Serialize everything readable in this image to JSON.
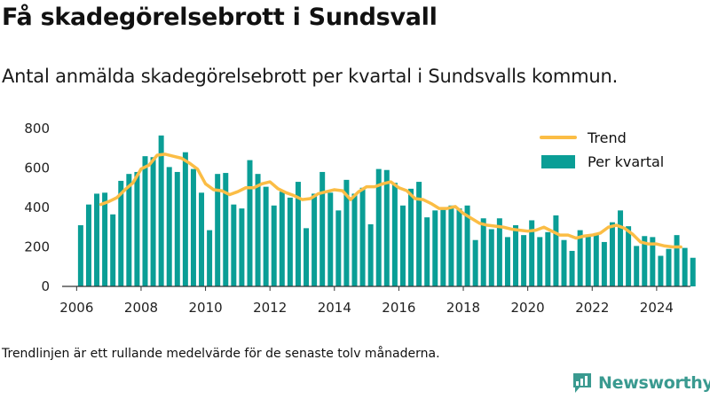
{
  "title": "Få skadegörelsebrott i Sundsvall",
  "subtitle": "Antal anmälda skadegörelsebrott per kvartal i Sundsvalls kommun.",
  "footnote": "Trendlinjen är ett rullande medelvärde för de senaste tolv månaderna.",
  "brand": {
    "name": "Newsworthy",
    "logo_icon": "newsworthy-chart-bubble-icon",
    "color": "#3a9a90"
  },
  "colors": {
    "bar": "#0a9e96",
    "trend": "#fbbd45",
    "axis": "#333333"
  },
  "chart_data": {
    "type": "bar",
    "xlabel": "",
    "ylabel": "",
    "ylim": [
      0,
      800
    ],
    "xlim": [
      2005.55,
      2025.05
    ],
    "y_ticks": [
      0,
      200,
      400,
      600,
      800
    ],
    "x_ticks": [
      2006,
      2008,
      2010,
      2012,
      2014,
      2016,
      2018,
      2020,
      2022,
      2024
    ],
    "grid": false,
    "legend": {
      "position": "top-right",
      "entries": [
        {
          "label": "Trend",
          "kind": "line"
        },
        {
          "label": "Per kvartal",
          "kind": "bar"
        }
      ]
    },
    "quarters_start": "2006-Q1",
    "series": [
      {
        "name": "Per kvartal",
        "type": "bar",
        "values": [
          310,
          415,
          470,
          475,
          365,
          535,
          570,
          580,
          660,
          655,
          765,
          605,
          580,
          680,
          595,
          475,
          285,
          570,
          575,
          415,
          395,
          640,
          570,
          505,
          410,
          480,
          450,
          530,
          295,
          470,
          580,
          475,
          385,
          540,
          470,
          500,
          315,
          595,
          590,
          525,
          410,
          495,
          530,
          350,
          385,
          395,
          410,
          395,
          410,
          235,
          345,
          290,
          345,
          250,
          310,
          260,
          335,
          250,
          275,
          360,
          235,
          180,
          285,
          260,
          270,
          225,
          325,
          385,
          305,
          205,
          255,
          250,
          155,
          190,
          260,
          195,
          145
        ]
      },
      {
        "name": "Trend",
        "type": "line",
        "x": [
          2006.75,
          2007.0,
          2007.25,
          2007.5,
          2007.75,
          2008.0,
          2008.25,
          2008.5,
          2008.75,
          2009.0,
          2009.25,
          2009.5,
          2009.75,
          2010.0,
          2010.25,
          2010.5,
          2010.75,
          2011.0,
          2011.25,
          2011.5,
          2011.75,
          2012.0,
          2012.25,
          2012.5,
          2012.75,
          2013.0,
          2013.25,
          2013.5,
          2013.75,
          2014.0,
          2014.25,
          2014.5,
          2014.75,
          2015.0,
          2015.25,
          2015.5,
          2015.75,
          2016.0,
          2016.25,
          2016.5,
          2016.75,
          2017.0,
          2017.25,
          2017.5,
          2017.75,
          2018.0,
          2018.25,
          2018.5,
          2018.75,
          2019.0,
          2019.25,
          2019.5,
          2019.75,
          2020.0,
          2020.25,
          2020.5,
          2020.75,
          2021.0,
          2021.25,
          2021.5,
          2021.75,
          2022.0,
          2022.25,
          2022.5,
          2022.75,
          2023.0,
          2023.25,
          2023.5,
          2023.75,
          2024.0,
          2024.25,
          2024.5,
          2024.75
        ],
        "values": [
          415,
          430,
          450,
          490,
          525,
          595,
          615,
          665,
          670,
          660,
          650,
          625,
          595,
          520,
          490,
          485,
          465,
          480,
          500,
          500,
          520,
          530,
          495,
          475,
          460,
          440,
          445,
          470,
          480,
          490,
          485,
          440,
          480,
          505,
          505,
          520,
          530,
          500,
          485,
          445,
          440,
          420,
          395,
          395,
          405,
          370,
          345,
          320,
          310,
          305,
          300,
          290,
          285,
          280,
          285,
          300,
          280,
          260,
          260,
          245,
          255,
          260,
          270,
          300,
          310,
          295,
          265,
          225,
          215,
          215,
          205,
          200,
          200
        ]
      }
    ]
  }
}
